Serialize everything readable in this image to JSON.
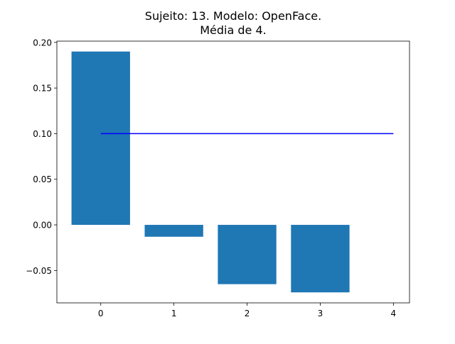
{
  "chart_data": {
    "type": "bar",
    "title_lines": [
      "Sujeito: 13. Modelo: OpenFace.",
      "Média de 4."
    ],
    "categories": [
      0,
      1,
      2,
      3
    ],
    "values": [
      0.19,
      -0.013,
      -0.065,
      -0.074
    ],
    "bar_color": "#1f77b4",
    "reference_line": {
      "x_start": 0,
      "x_end": 4,
      "y": 0.1,
      "color": "#0000ff"
    },
    "xlim": [
      -0.6,
      4.22
    ],
    "ylim": [
      -0.0855,
      0.2014
    ],
    "xticks": [
      0,
      1,
      2,
      3,
      4
    ],
    "xtick_labels": [
      "0",
      "1",
      "2",
      "3",
      "4"
    ],
    "yticks": [
      -0.05,
      0.0,
      0.05,
      0.1,
      0.15,
      0.2
    ],
    "ytick_labels": [
      "−0.05",
      "0.00",
      "0.05",
      "0.10",
      "0.15",
      "0.20"
    ],
    "xlabel": "",
    "ylabel": "",
    "grid": false,
    "legend": "none"
  }
}
